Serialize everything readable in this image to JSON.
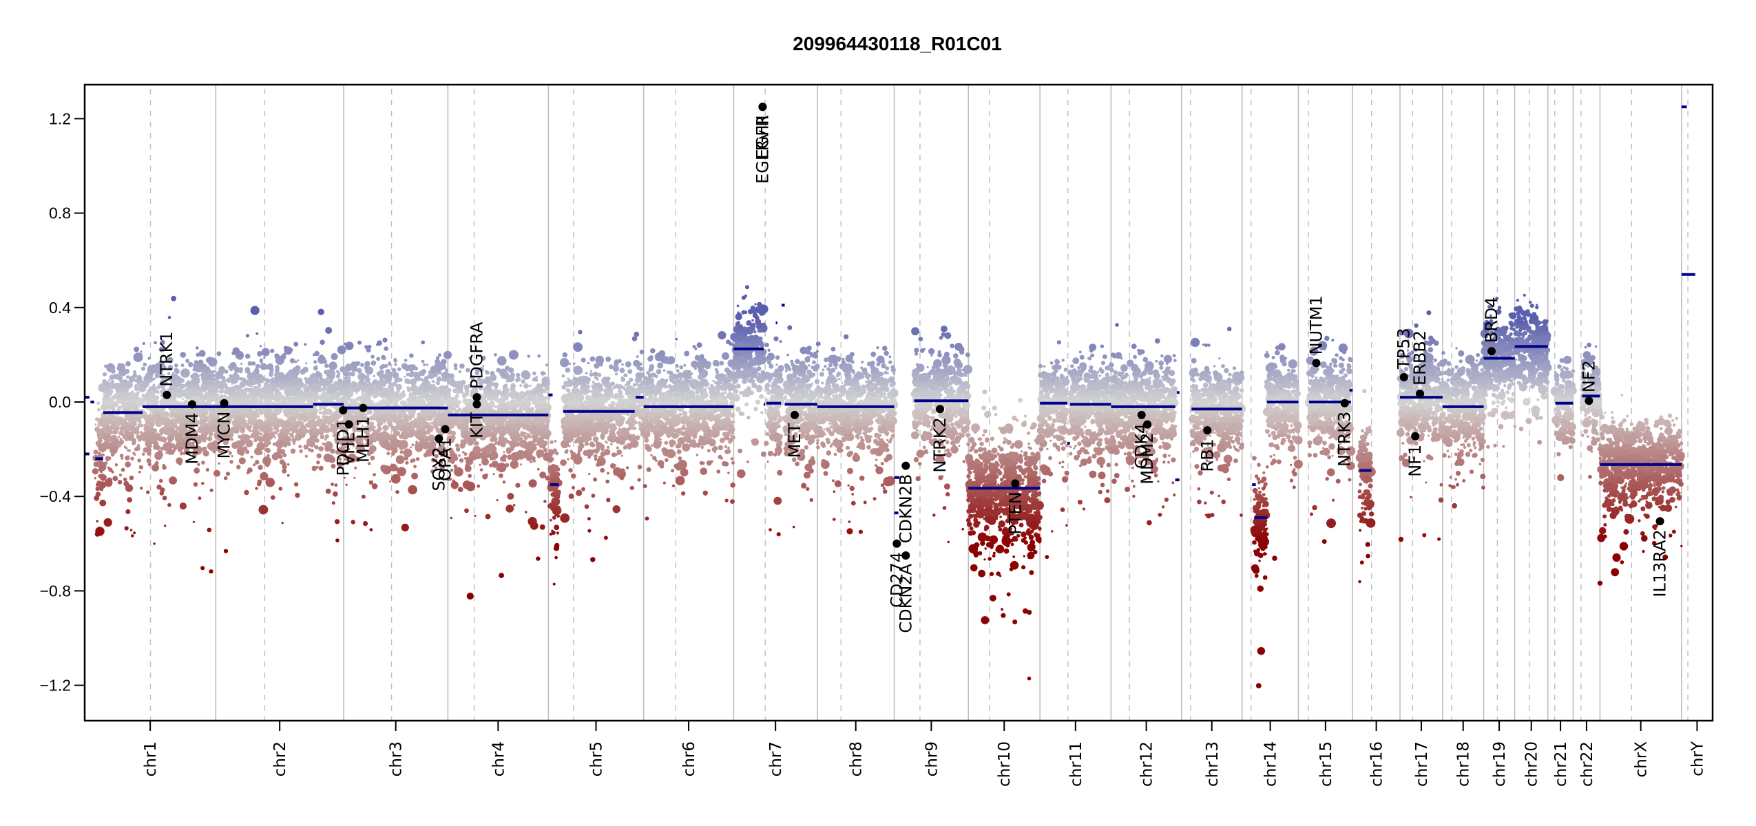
{
  "chart_data": {
    "type": "scatter",
    "title": "209964430118_R01C01",
    "xlabel": "",
    "ylabel": "",
    "ylim": [
      -1.34,
      1.36
    ],
    "yticks": [
      1.2,
      0.8,
      0.4,
      0.0,
      -0.4,
      -0.8,
      -1.2
    ],
    "ytick_labels": [
      "1.2",
      "0.8",
      "0.4",
      "0.0",
      "-0.4",
      "-0.8",
      "-1.2"
    ],
    "x_units": "Mb (genome-wide, chromosomes concatenated)",
    "grid": false,
    "legend": "none",
    "colors": {
      "segment": "#00008B",
      "gain": "#5A5FAE",
      "neutral": "#D3D3D3",
      "loss": "#8B0000",
      "chrom_boundary": "#BEBEBE",
      "centromere": "#BEBEBE",
      "gene_point": "#000000"
    },
    "chromosomes": [
      {
        "name": "chr1",
        "length": 249,
        "centromere": 125,
        "spread": 0.11
      },
      {
        "name": "chr2",
        "length": 243,
        "centromere": 93,
        "spread": 0.1
      },
      {
        "name": "chr3",
        "length": 198,
        "centromere": 91,
        "spread": 0.1
      },
      {
        "name": "chr4",
        "length": 191,
        "centromere": 50,
        "spread": 0.1
      },
      {
        "name": "chr5",
        "length": 181,
        "centromere": 48,
        "spread": 0.1
      },
      {
        "name": "chr6",
        "length": 171,
        "centromere": 61,
        "spread": 0.1
      },
      {
        "name": "chr7",
        "length": 159,
        "centromere": 60,
        "spread": 0.1
      },
      {
        "name": "chr8",
        "length": 146,
        "centromere": 45,
        "spread": 0.1
      },
      {
        "name": "chr9",
        "length": 141,
        "centromere": 49,
        "spread": 0.1
      },
      {
        "name": "chr10",
        "length": 136,
        "centromere": 40,
        "spread": 0.13
      },
      {
        "name": "chr11",
        "length": 135,
        "centromere": 53,
        "spread": 0.1
      },
      {
        "name": "chr12",
        "length": 134,
        "centromere": 35,
        "spread": 0.1
      },
      {
        "name": "chr13",
        "length": 115,
        "centromere": 17,
        "spread": 0.1
      },
      {
        "name": "chr14",
        "length": 107,
        "centromere": 17,
        "spread": 0.1
      },
      {
        "name": "chr15",
        "length": 103,
        "centromere": 19,
        "spread": 0.1
      },
      {
        "name": "chr16",
        "length": 90,
        "centromere": 36,
        "spread": 0.1
      },
      {
        "name": "chr17",
        "length": 81,
        "centromere": 24,
        "spread": 0.1
      },
      {
        "name": "chr18",
        "length": 78,
        "centromere": 17,
        "spread": 0.1
      },
      {
        "name": "chr19",
        "length": 59,
        "centromere": 26,
        "spread": 0.09
      },
      {
        "name": "chr20",
        "length": 63,
        "centromere": 28,
        "spread": 0.09
      },
      {
        "name": "chr21",
        "length": 48,
        "centromere": 13,
        "spread": 0.08
      },
      {
        "name": "chr22",
        "length": 51,
        "centromere": 15,
        "spread": 0.08
      },
      {
        "name": "chrX",
        "length": 155,
        "centromere": 60,
        "spread": 0.09
      },
      {
        "name": "chrY",
        "length": 59,
        "centromere": 12,
        "spread": 0.0
      }
    ],
    "segments": [
      {
        "chr": "chr1",
        "start": 0,
        "end": 9,
        "value": 0.02
      },
      {
        "chr": "chr1",
        "start": 11,
        "end": 18,
        "value": 0.0
      },
      {
        "chr": "chr1",
        "start": 0,
        "end": 9,
        "value": -0.22
      },
      {
        "chr": "chr1",
        "start": 20,
        "end": 35,
        "value": -0.24
      },
      {
        "chr": "chr1",
        "start": 35,
        "end": 110,
        "value": -0.045
      },
      {
        "chr": "chr1",
        "start": 110,
        "end": 249,
        "value": -0.02
      },
      {
        "chr": "chr2",
        "start": 0,
        "end": 185,
        "value": -0.02
      },
      {
        "chr": "chr2",
        "start": 185,
        "end": 243,
        "value": -0.01
      },
      {
        "chr": "chr3",
        "start": 0,
        "end": 198,
        "value": -0.025
      },
      {
        "chr": "chr4",
        "start": 0,
        "end": 191,
        "value": -0.055
      },
      {
        "chr": "chr5",
        "start": 0,
        "end": 8,
        "value": 0.03
      },
      {
        "chr": "chr5",
        "start": 3,
        "end": 20,
        "value": -0.35
      },
      {
        "chr": "chr5",
        "start": 28,
        "end": 164,
        "value": -0.04
      },
      {
        "chr": "chr5",
        "start": 166,
        "end": 181,
        "value": 0.02
      },
      {
        "chr": "chr6",
        "start": 0,
        "end": 171,
        "value": -0.02
      },
      {
        "chr": "chr7",
        "start": 0,
        "end": 57,
        "value": 0.225
      },
      {
        "chr": "chr7",
        "start": 57,
        "end": 60,
        "value": -0.01
      },
      {
        "chr": "chr7",
        "start": 80,
        "end": 83,
        "value": 0.335
      },
      {
        "chr": "chr7",
        "start": 62,
        "end": 90,
        "value": -0.005
      },
      {
        "chr": "chr7",
        "start": 91,
        "end": 97,
        "value": 0.41
      },
      {
        "chr": "chr7",
        "start": 97,
        "end": 159,
        "value": -0.01
      },
      {
        "chr": "chr8",
        "start": 0,
        "end": 146,
        "value": -0.02
      },
      {
        "chr": "chr9",
        "start": 0,
        "end": 10,
        "value": -0.32
      },
      {
        "chr": "chr9",
        "start": 0,
        "end": 8,
        "value": -0.47
      },
      {
        "chr": "chr9",
        "start": 38,
        "end": 141,
        "value": 0.005
      },
      {
        "chr": "chr10",
        "start": 0,
        "end": 136,
        "value": -0.365
      },
      {
        "chr": "chr11",
        "start": 0,
        "end": 52,
        "value": -0.005
      },
      {
        "chr": "chr11",
        "start": 52,
        "end": 57,
        "value": -0.175
      },
      {
        "chr": "chr11",
        "start": 57,
        "end": 135,
        "value": -0.01
      },
      {
        "chr": "chr12",
        "start": 0,
        "end": 122,
        "value": -0.02
      },
      {
        "chr": "chr12",
        "start": 125,
        "end": 130,
        "value": 0.04
      },
      {
        "chr": "chr12",
        "start": 122,
        "end": 130,
        "value": -0.33
      },
      {
        "chr": "chr13",
        "start": 19,
        "end": 115,
        "value": -0.03
      },
      {
        "chr": "chr14",
        "start": 19,
        "end": 26,
        "value": -0.35
      },
      {
        "chr": "chr14",
        "start": 23,
        "end": 48,
        "value": -0.49
      },
      {
        "chr": "chr14",
        "start": 47,
        "end": 107,
        "value": 0.0
      },
      {
        "chr": "chr15",
        "start": 20,
        "end": 100,
        "value": 0.0
      },
      {
        "chr": "chr15",
        "start": 97,
        "end": 103,
        "value": 0.05
      },
      {
        "chr": "chr16",
        "start": 13,
        "end": 36,
        "value": -0.29
      },
      {
        "chr": "chr17",
        "start": 0,
        "end": 81,
        "value": 0.02
      },
      {
        "chr": "chr18",
        "start": 0,
        "end": 78,
        "value": -0.02
      },
      {
        "chr": "chr19",
        "start": 0,
        "end": 59,
        "value": 0.185
      },
      {
        "chr": "chr20",
        "start": 0,
        "end": 63,
        "value": 0.235
      },
      {
        "chr": "chr21",
        "start": 14,
        "end": 48,
        "value": -0.005
      },
      {
        "chr": "chr22",
        "start": 17,
        "end": 51,
        "value": 0.025
      },
      {
        "chr": "chrX",
        "start": 0,
        "end": 155,
        "value": -0.265
      },
      {
        "chr": "chrY",
        "start": 0,
        "end": 10,
        "value": 1.25
      },
      {
        "chr": "chrY",
        "start": 0,
        "end": 26,
        "value": 0.54
      }
    ],
    "genes": [
      {
        "name": "NTRK1",
        "chr": "chr1",
        "pos": 156,
        "value": 0.03,
        "label_side": "above"
      },
      {
        "name": "MDM4",
        "chr": "chr1",
        "pos": 204,
        "value": -0.01,
        "label_side": "below"
      },
      {
        "name": "MYCN",
        "chr": "chr2",
        "pos": 16,
        "value": -0.005,
        "label_side": "below"
      },
      {
        "name": "PDCD1",
        "chr": "chr2",
        "pos": 242,
        "value": -0.035,
        "label_side": "below"
      },
      {
        "name": "VHL",
        "chr": "chr3",
        "pos": 10,
        "value": -0.095,
        "label_side": "below"
      },
      {
        "name": "MLH1",
        "chr": "chr3",
        "pos": 37,
        "value": -0.025,
        "label_side": "below"
      },
      {
        "name": "SOX2",
        "chr": "chr3",
        "pos": 181,
        "value": -0.155,
        "label_side": "below"
      },
      {
        "name": "OPA1",
        "chr": "chr3",
        "pos": 193,
        "value": -0.115,
        "label_side": "below"
      },
      {
        "name": "KIT",
        "chr": "chr4",
        "pos": 55,
        "value": -0.01,
        "label_side": "below"
      },
      {
        "name": "PDGFRA",
        "chr": "chr4",
        "pos": 55,
        "value": 0.02,
        "label_side": "above"
      },
      {
        "name": "EGFR",
        "chr": "chr7",
        "pos": 55,
        "value": 1.25,
        "label_side": "below"
      },
      {
        "name": "EGFRvIII",
        "chr": "chr7",
        "pos": 55,
        "value": 1.25,
        "label_side": "below"
      },
      {
        "name": "MET",
        "chr": "chr7",
        "pos": 116,
        "value": -0.055,
        "label_side": "below"
      },
      {
        "name": "CD274",
        "chr": "chr9",
        "pos": 5,
        "value": -0.6,
        "label_side": "below"
      },
      {
        "name": "CDKN2A",
        "chr": "chr9",
        "pos": 22,
        "value": -0.65,
        "label_side": "below"
      },
      {
        "name": "CDKN2B",
        "chr": "chr9",
        "pos": 22,
        "value": -0.27,
        "label_side": "below"
      },
      {
        "name": "NTRK2",
        "chr": "chr9",
        "pos": 87,
        "value": -0.03,
        "label_side": "below"
      },
      {
        "name": "PTEN",
        "chr": "chr10",
        "pos": 89,
        "value": -0.345,
        "label_side": "below"
      },
      {
        "name": "CDK4",
        "chr": "chr12",
        "pos": 58,
        "value": -0.055,
        "label_side": "below"
      },
      {
        "name": "MDM2",
        "chr": "chr12",
        "pos": 69,
        "value": -0.095,
        "label_side": "below"
      },
      {
        "name": "RB1",
        "chr": "chr13",
        "pos": 49,
        "value": -0.12,
        "label_side": "below"
      },
      {
        "name": "NUTM1",
        "chr": "chr15",
        "pos": 34,
        "value": 0.165,
        "label_side": "above"
      },
      {
        "name": "NTRK3",
        "chr": "chr15",
        "pos": 88,
        "value": -0.005,
        "label_side": "below"
      },
      {
        "name": "TP53",
        "chr": "chr17",
        "pos": 7.5,
        "value": 0.105,
        "label_side": "above"
      },
      {
        "name": "NF1",
        "chr": "chr17",
        "pos": 29,
        "value": -0.145,
        "label_side": "below"
      },
      {
        "name": "ERBB2",
        "chr": "chr17",
        "pos": 38,
        "value": 0.035,
        "label_side": "above"
      },
      {
        "name": "BRD4",
        "chr": "chr19",
        "pos": 15,
        "value": 0.215,
        "label_side": "above"
      },
      {
        "name": "NF2",
        "chr": "chr22",
        "pos": 30,
        "value": 0.005,
        "label_side": "above"
      },
      {
        "name": "IL13RA2",
        "chr": "chrX",
        "pos": 114,
        "value": -0.505,
        "label_side": "below"
      }
    ]
  }
}
